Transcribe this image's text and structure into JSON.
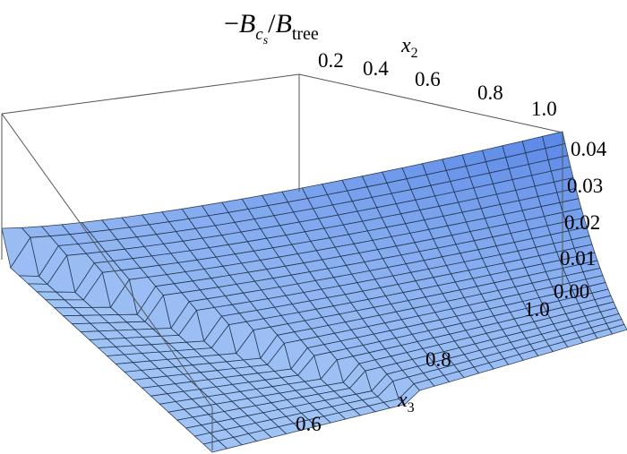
{
  "chart_data": {
    "type": "surface3d",
    "title_parts": {
      "prefix": "−",
      "num_base": "B",
      "num_sub": "c",
      "num_subsub": "s",
      "slash": "/",
      "den_base": "B",
      "den_sub": "tree"
    },
    "x2_axis": {
      "label_base": "x",
      "label_sub": "2",
      "ticks": [
        "0.2",
        "0.4",
        "0.6",
        "0.8",
        "1.0"
      ],
      "range": [
        0.0,
        1.0
      ]
    },
    "x3_axis": {
      "label_base": "x",
      "label_sub": "3",
      "ticks": [
        "0.6",
        "0.8",
        "1.0"
      ],
      "range": [
        0.5,
        1.0
      ]
    },
    "z_axis": {
      "ticks": [
        "0.00",
        "0.01",
        "0.02",
        "0.03",
        "0.04"
      ],
      "range": [
        0.0,
        0.045
      ]
    },
    "colors": {
      "surface": "#8fb6f2",
      "surface_dark": "#4e7fd0",
      "mesh": "#1a2a44",
      "box": "#555555"
    },
    "surface": {
      "peak_at_x2_1_x3_1": 0.045,
      "domain_ridge": "x2 + x3 >= 1 (nonzero region), zero elsewhere",
      "ridge_height_at_x2_0.2": 0.012
    }
  }
}
